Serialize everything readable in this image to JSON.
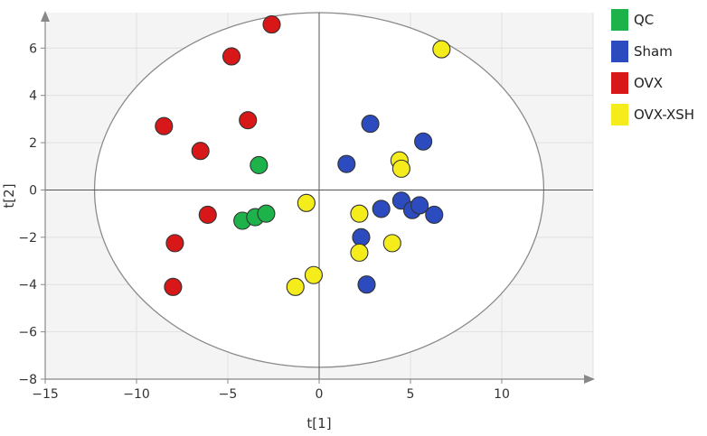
{
  "chart_data": {
    "type": "scatter",
    "title": "",
    "xlabel": "t[1]",
    "ylabel": "t[2]",
    "xlim": [
      -15,
      15
    ],
    "ylim": [
      -8,
      7.5
    ],
    "xticks": [
      -15,
      -10,
      -5,
      0,
      5,
      10
    ],
    "yticks": [
      -8,
      -6,
      -4,
      -2,
      0,
      2,
      4,
      6
    ],
    "grid": true,
    "legend_position": "top-right",
    "ellipse": {
      "center": [
        0,
        0
      ],
      "rx": 12.3,
      "ry": 7.5
    },
    "series": [
      {
        "name": "QC",
        "color": "#1db34a",
        "points": [
          [
            -3.3,
            1.05
          ],
          [
            -4.2,
            -1.3
          ],
          [
            -3.5,
            -1.15
          ],
          [
            -2.9,
            -1.0
          ]
        ]
      },
      {
        "name": "Sham",
        "color": "#2b4bbf",
        "points": [
          [
            2.8,
            2.8
          ],
          [
            1.5,
            1.1
          ],
          [
            5.7,
            2.05
          ],
          [
            3.4,
            -0.8
          ],
          [
            4.5,
            -0.45
          ],
          [
            5.1,
            -0.85
          ],
          [
            5.5,
            -0.65
          ],
          [
            6.3,
            -1.05
          ],
          [
            2.3,
            -2.0
          ],
          [
            2.6,
            -4.0
          ]
        ]
      },
      {
        "name": "OVX",
        "color": "#d81818",
        "points": [
          [
            -2.6,
            7.0
          ],
          [
            -4.8,
            5.65
          ],
          [
            -3.9,
            2.95
          ],
          [
            -8.5,
            2.7
          ],
          [
            -6.5,
            1.65
          ],
          [
            -6.1,
            -1.05
          ],
          [
            -7.9,
            -2.25
          ],
          [
            -8.0,
            -4.1
          ]
        ]
      },
      {
        "name": "OVX-XSH",
        "color": "#f5ec1c",
        "points": [
          [
            6.7,
            5.95
          ],
          [
            4.4,
            1.25
          ],
          [
            4.5,
            0.9
          ],
          [
            -0.7,
            -0.55
          ],
          [
            2.2,
            -1.0
          ],
          [
            4.0,
            -2.25
          ],
          [
            2.2,
            -2.65
          ],
          [
            -0.3,
            -3.6
          ],
          [
            -1.3,
            -4.1
          ]
        ]
      }
    ]
  }
}
